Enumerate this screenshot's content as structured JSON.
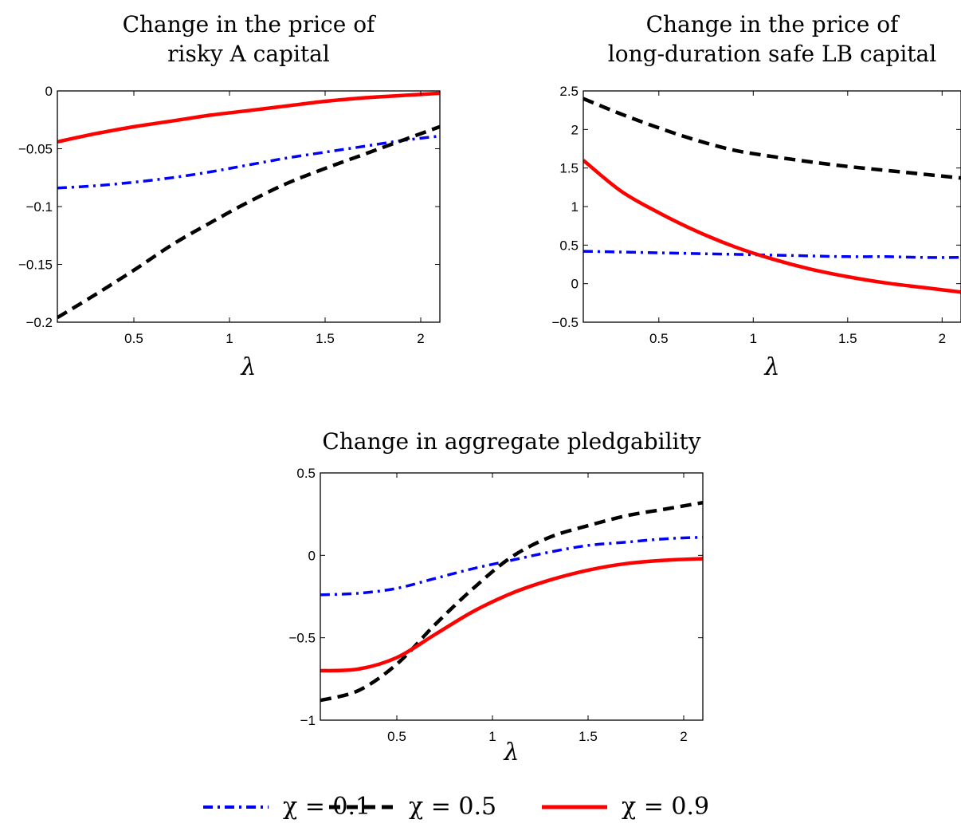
{
  "chart_data": [
    {
      "type": "line",
      "title_lines": [
        "Change in the price of",
        "risky A capital"
      ],
      "xlabel": "λ",
      "ylabel": "",
      "xlim": [
        0.1,
        2.1
      ],
      "ylim": [
        -0.2,
        0
      ],
      "xticks": [
        0.5,
        1,
        1.5,
        2
      ],
      "xtick_labels": [
        "0.5",
        "1",
        "1.5",
        "2"
      ],
      "yticks": [
        0,
        -0.05,
        -0.1,
        -0.15,
        -0.2
      ],
      "ytick_labels": [
        "0",
        "−0.05",
        "−0.1",
        "−0.15",
        "−0.2"
      ],
      "x": [
        0.1,
        0.3,
        0.5,
        0.7,
        0.9,
        1.1,
        1.3,
        1.5,
        1.7,
        1.9,
        2.1
      ],
      "series": [
        {
          "legend_ref": 0,
          "values": [
            -0.084,
            -0.082,
            -0.079,
            -0.075,
            -0.07,
            -0.064,
            -0.058,
            -0.053,
            -0.048,
            -0.043,
            -0.039
          ]
        },
        {
          "legend_ref": 1,
          "values": [
            -0.196,
            -0.176,
            -0.155,
            -0.133,
            -0.114,
            -0.096,
            -0.08,
            -0.067,
            -0.055,
            -0.043,
            -0.031
          ]
        },
        {
          "legend_ref": 2,
          "values": [
            -0.044,
            -0.037,
            -0.031,
            -0.026,
            -0.021,
            -0.017,
            -0.013,
            -0.009,
            -0.006,
            -0.004,
            -0.002
          ]
        }
      ]
    },
    {
      "type": "line",
      "title_lines": [
        "Change in the price of",
        "long-duration safe LB capital"
      ],
      "xlabel": "λ",
      "ylabel": "",
      "xlim": [
        0.1,
        2.1
      ],
      "ylim": [
        -0.5,
        2.5
      ],
      "xticks": [
        0.5,
        1,
        1.5,
        2
      ],
      "xtick_labels": [
        "0.5",
        "1",
        "1.5",
        "2"
      ],
      "yticks": [
        2.5,
        2,
        1.5,
        1,
        0.5,
        0,
        -0.5
      ],
      "ytick_labels": [
        "2.5",
        "2",
        "1.5",
        "1",
        "0.5",
        "0",
        "−0.5"
      ],
      "x": [
        0.1,
        0.3,
        0.5,
        0.7,
        0.9,
        1.1,
        1.3,
        1.5,
        1.7,
        1.9,
        2.1
      ],
      "series": [
        {
          "legend_ref": 0,
          "values": [
            0.42,
            0.41,
            0.4,
            0.39,
            0.38,
            0.37,
            0.36,
            0.35,
            0.35,
            0.34,
            0.34
          ]
        },
        {
          "legend_ref": 1,
          "values": [
            2.4,
            2.2,
            2.02,
            1.86,
            1.73,
            1.65,
            1.58,
            1.52,
            1.47,
            1.42,
            1.37
          ]
        },
        {
          "legend_ref": 2,
          "values": [
            1.6,
            1.2,
            0.92,
            0.68,
            0.48,
            0.32,
            0.19,
            0.09,
            0.01,
            -0.05,
            -0.11
          ]
        }
      ]
    },
    {
      "type": "line",
      "title_lines": [
        "Change in aggregate pledgability"
      ],
      "xlabel": "λ",
      "ylabel": "",
      "xlim": [
        0.1,
        2.1
      ],
      "ylim": [
        -1,
        0.5
      ],
      "xticks": [
        0.5,
        1,
        1.5,
        2
      ],
      "xtick_labels": [
        "0.5",
        "1",
        "1.5",
        "2"
      ],
      "yticks": [
        0.5,
        0,
        -0.5,
        -1
      ],
      "ytick_labels": [
        "0.5",
        "0",
        "−0.5",
        "−1"
      ],
      "x": [
        0.1,
        0.3,
        0.5,
        0.7,
        0.9,
        1.1,
        1.3,
        1.5,
        1.7,
        1.9,
        2.1
      ],
      "series": [
        {
          "legend_ref": 0,
          "values": [
            -0.24,
            -0.23,
            -0.2,
            -0.14,
            -0.08,
            -0.03,
            0.02,
            0.06,
            0.08,
            0.1,
            0.11
          ]
        },
        {
          "legend_ref": 1,
          "values": [
            -0.88,
            -0.82,
            -0.66,
            -0.42,
            -0.2,
            -0.01,
            0.11,
            0.18,
            0.24,
            0.28,
            0.32
          ]
        },
        {
          "legend_ref": 2,
          "values": [
            -0.7,
            -0.69,
            -0.62,
            -0.48,
            -0.34,
            -0.23,
            -0.15,
            -0.09,
            -0.05,
            -0.03,
            -0.02
          ]
        }
      ]
    }
  ],
  "legend": {
    "placement": "bottom-center",
    "entries": [
      {
        "label": "χ = 0.1",
        "color": "#0000ff",
        "style": "dash-dot"
      },
      {
        "label": "χ = 0.5",
        "color": "#000000",
        "style": "dashed"
      },
      {
        "label": "χ = 0.9",
        "color": "#ff0000",
        "style": "solid"
      }
    ]
  }
}
